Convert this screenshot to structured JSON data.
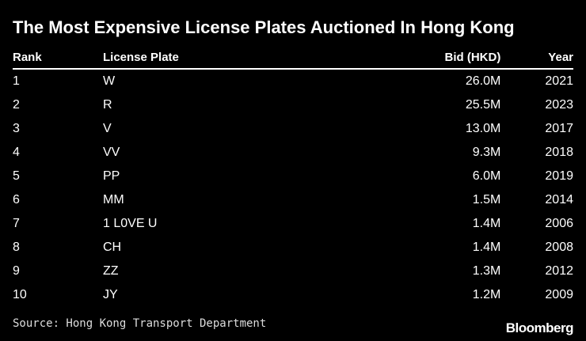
{
  "header": {
    "title": "The Most Expensive License Plates Auctioned In Hong Kong"
  },
  "table": {
    "columns": [
      "Rank",
      "License Plate",
      "Bid (HKD)",
      "Year"
    ],
    "rows": [
      [
        "1",
        "W",
        "26.0M",
        "2021"
      ],
      [
        "2",
        "R",
        "25.5M",
        "2023"
      ],
      [
        "3",
        "V",
        "13.0M",
        "2017"
      ],
      [
        "4",
        "VV",
        "9.3M",
        "2018"
      ],
      [
        "5",
        "PP",
        "6.0M",
        "2019"
      ],
      [
        "6",
        "MM",
        "1.5M",
        "2014"
      ],
      [
        "7",
        "1 L0VE U",
        "1.4M",
        "2006"
      ],
      [
        "8",
        "CH",
        "1.4M",
        "2008"
      ],
      [
        "9",
        "ZZ",
        "1.3M",
        "2012"
      ],
      [
        "10",
        "JY",
        "1.2M",
        "2009"
      ]
    ]
  },
  "footer": {
    "source": "Source: Hong Kong Transport Department",
    "brand": "Bloomberg"
  }
}
